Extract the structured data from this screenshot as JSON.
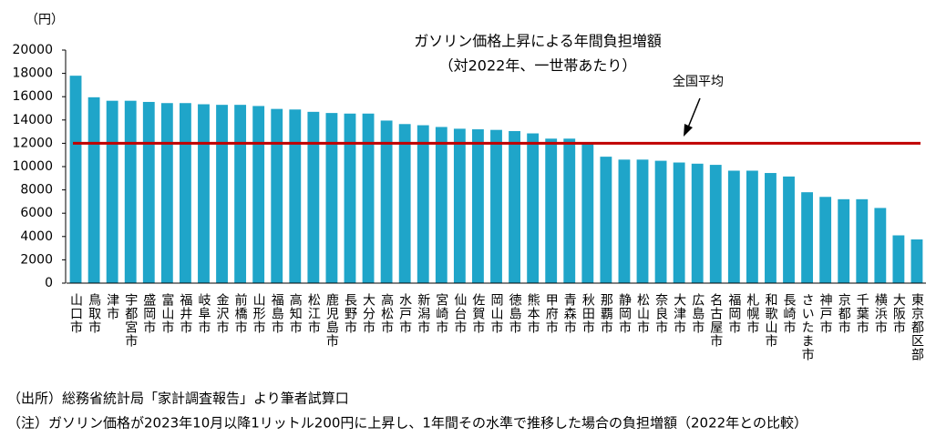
{
  "chart_data": {
    "type": "bar",
    "title": "ガソリン価格上昇による年間負担増額",
    "subtitle": "（対2022年、一世帯あたり）",
    "y_unit": "（円）",
    "categories": [
      "山口市",
      "鳥取市",
      "津市",
      "宇都宮市",
      "盛岡市",
      "富山市",
      "福井市",
      "岐阜市",
      "金沢市",
      "前橋市",
      "山形市",
      "福島市",
      "高知市",
      "松江市",
      "鹿児島市",
      "長野市",
      "大分市",
      "高松市",
      "水戸市",
      "新潟市",
      "宮崎市",
      "仙台市",
      "佐賀市",
      "岡山市",
      "徳島市",
      "熊本市",
      "甲府市",
      "青森市",
      "秋田市",
      "那覇市",
      "静岡市",
      "松山市",
      "奈良市",
      "大津市",
      "広島市",
      "名古屋市",
      "福岡市",
      "札幌市",
      "和歌山市",
      "長崎市",
      "さいたま市",
      "神戸市",
      "京都市",
      "千葉市",
      "横浜市",
      "大阪市",
      "東京都区部"
    ],
    "values": [
      17800,
      15950,
      15650,
      15650,
      15550,
      15450,
      15450,
      15350,
      15300,
      15300,
      15200,
      14950,
      14900,
      14700,
      14600,
      14550,
      14550,
      13950,
      13650,
      13550,
      13400,
      13250,
      13200,
      13150,
      13050,
      12850,
      12400,
      12400,
      11950,
      10850,
      10600,
      10600,
      10500,
      10350,
      10250,
      10150,
      9650,
      9650,
      9450,
      9150,
      7800,
      7400,
      7200,
      7200,
      6450,
      4100,
      3750
    ],
    "color": "#1fa5c9",
    "average": {
      "label": "全国平均",
      "value": 12000,
      "color": "#c00000"
    },
    "ylim": [
      0,
      20000
    ],
    "yticks": [
      0,
      2000,
      4000,
      6000,
      8000,
      10000,
      12000,
      14000,
      16000,
      18000,
      20000
    ],
    "grid": false
  },
  "notes": [
    "（出所）総務省統計局「家計調査報告」より筆者試算口",
    "（注）ガソリン価格が2023年10月以降1リットル200円に上昇し、1年間その水準で推移した場合の負担増額（2022年との比較）"
  ]
}
